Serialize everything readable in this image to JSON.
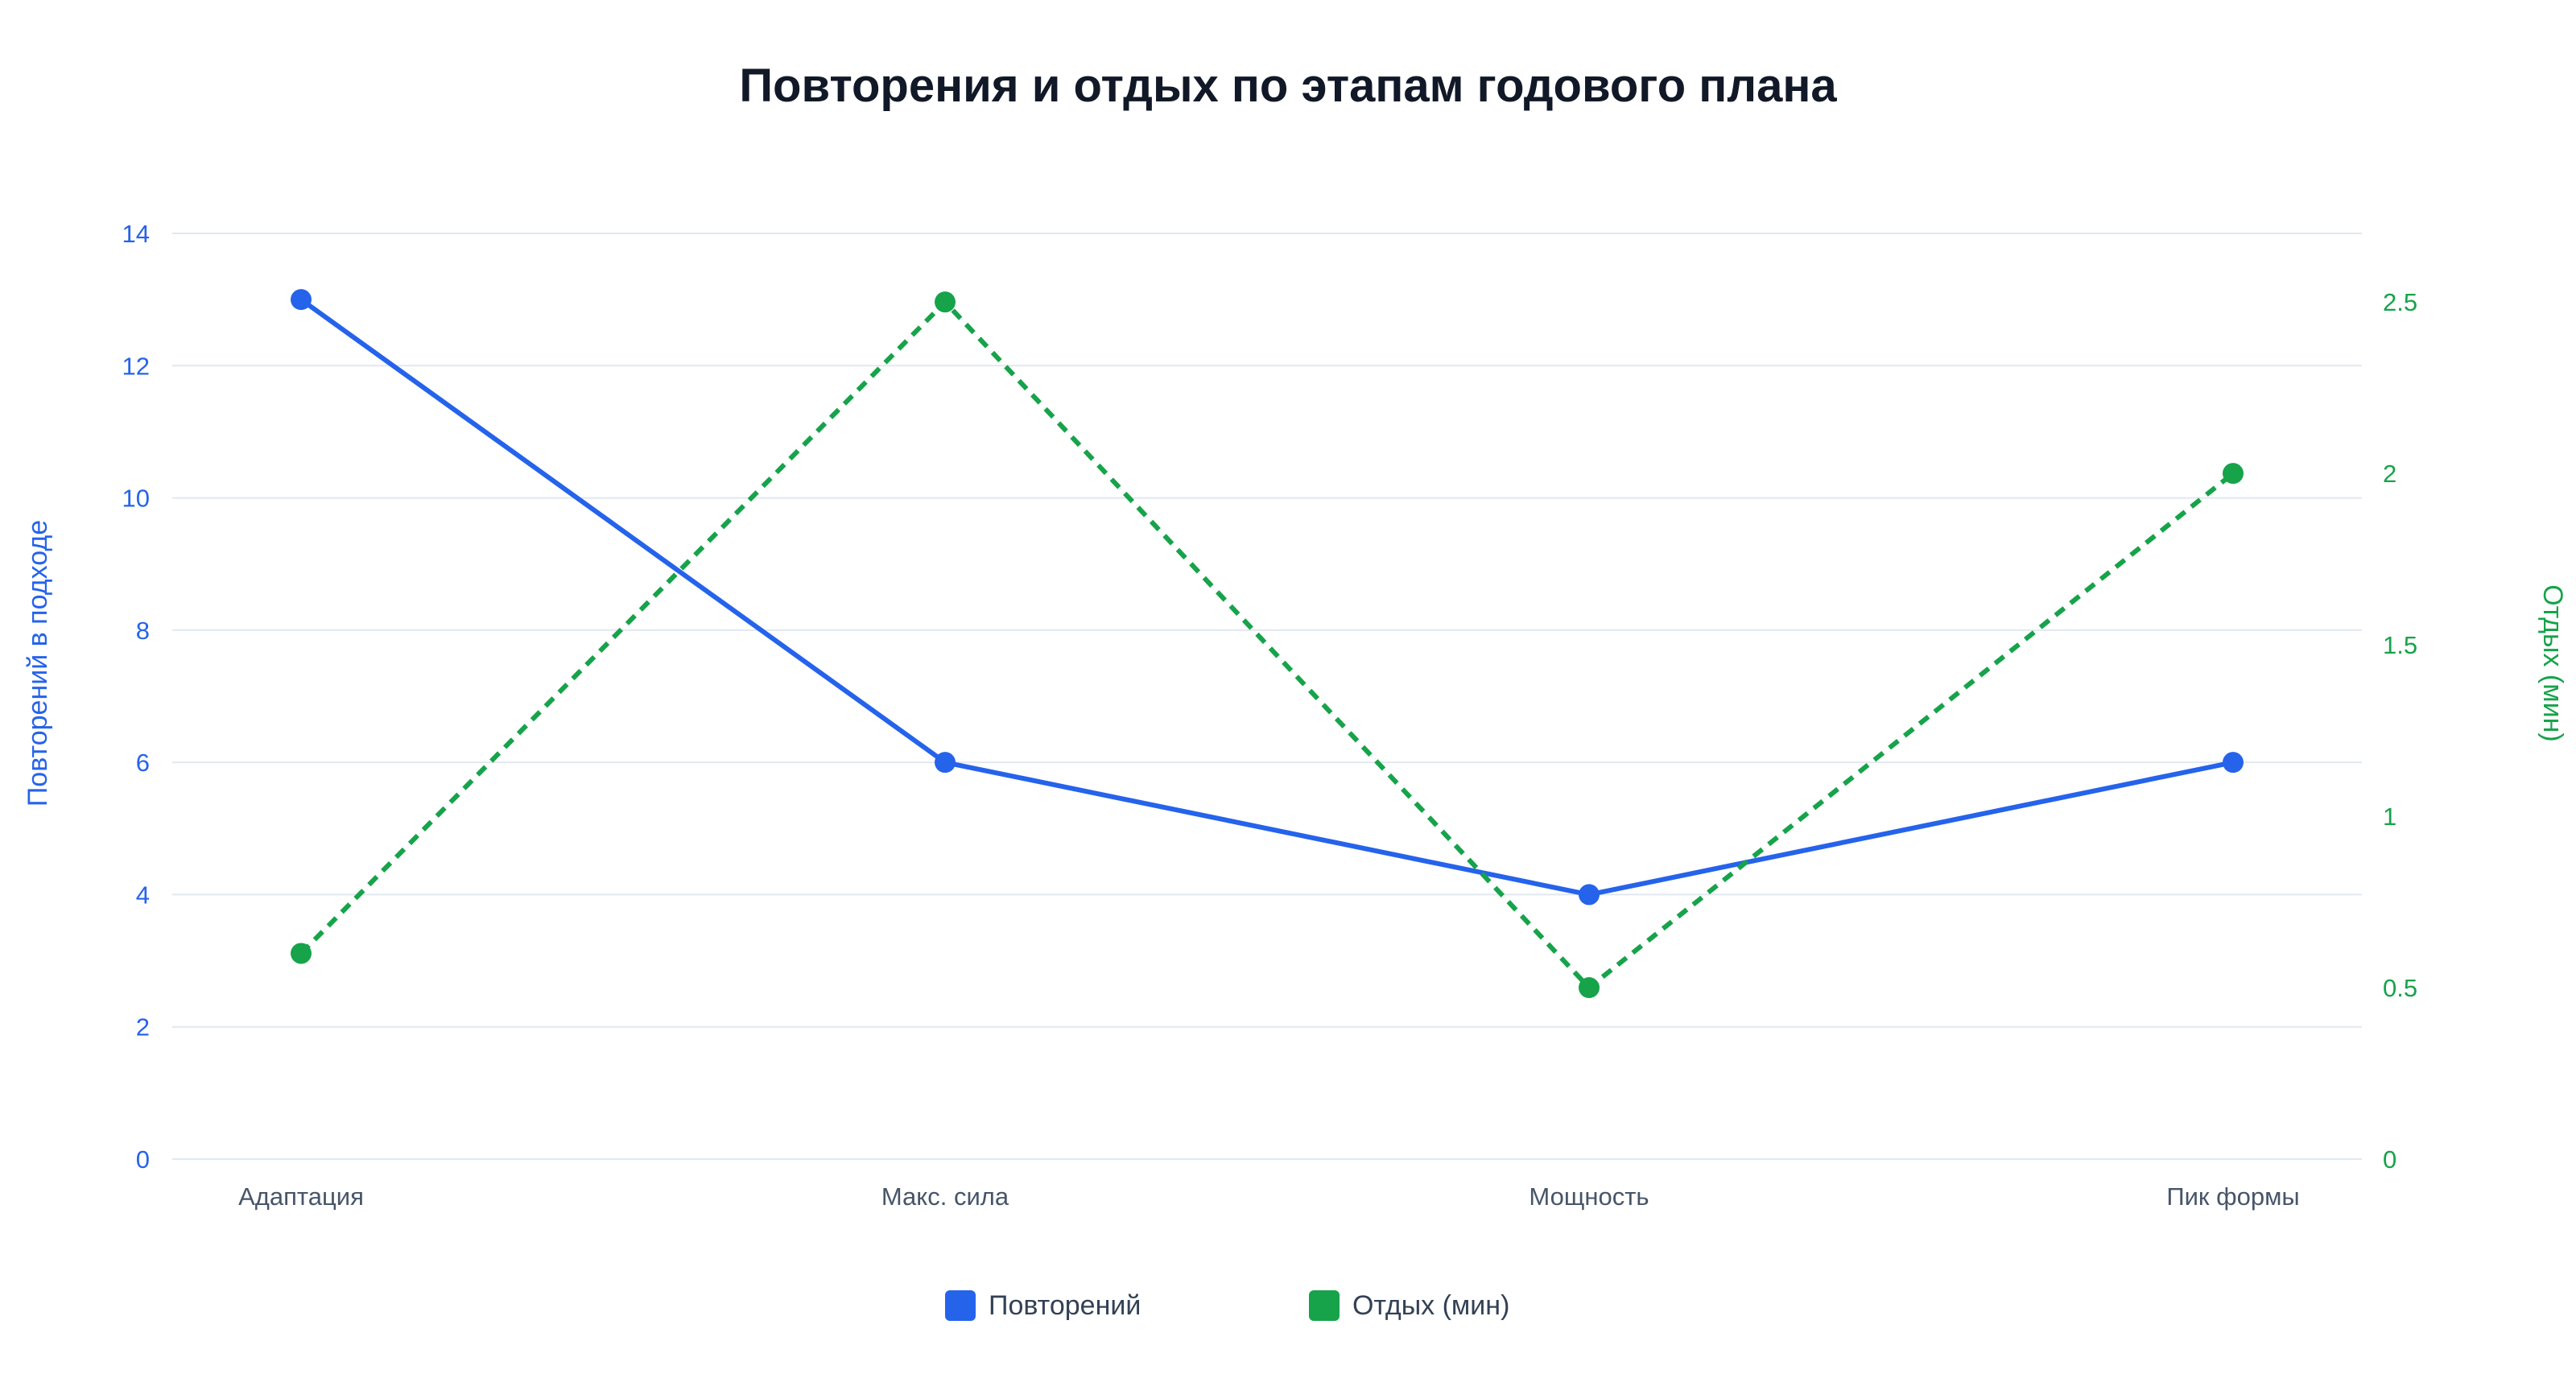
{
  "chart_data": {
    "type": "line",
    "title": "Повторения и отдых по этапам годового плана",
    "categories": [
      "Адаптация",
      "Макс. сила",
      "Мощность",
      "Пик формы"
    ],
    "y_left": {
      "label": "Повторений в подходе",
      "range": [
        0,
        14
      ],
      "ticks": [
        0,
        2,
        4,
        6,
        8,
        10,
        12,
        14
      ],
      "color": "#2563eb"
    },
    "y_right": {
      "label": "Отдых (мин)",
      "range": [
        0,
        2.7
      ],
      "ticks": [
        0,
        0.5,
        1,
        1.5,
        2,
        2.5
      ],
      "color": "#16a34a"
    },
    "series": [
      {
        "name": "Повторений",
        "axis": "left",
        "values": [
          13,
          6,
          4,
          6
        ],
        "color": "#2563eb",
        "style": "solid"
      },
      {
        "name": "Отдых (мин)",
        "axis": "right",
        "values": [
          0.6,
          2.5,
          0.5,
          2
        ],
        "color": "#16a34a",
        "style": "dashed"
      }
    ],
    "grid": true,
    "legend_position": "bottom-center"
  }
}
